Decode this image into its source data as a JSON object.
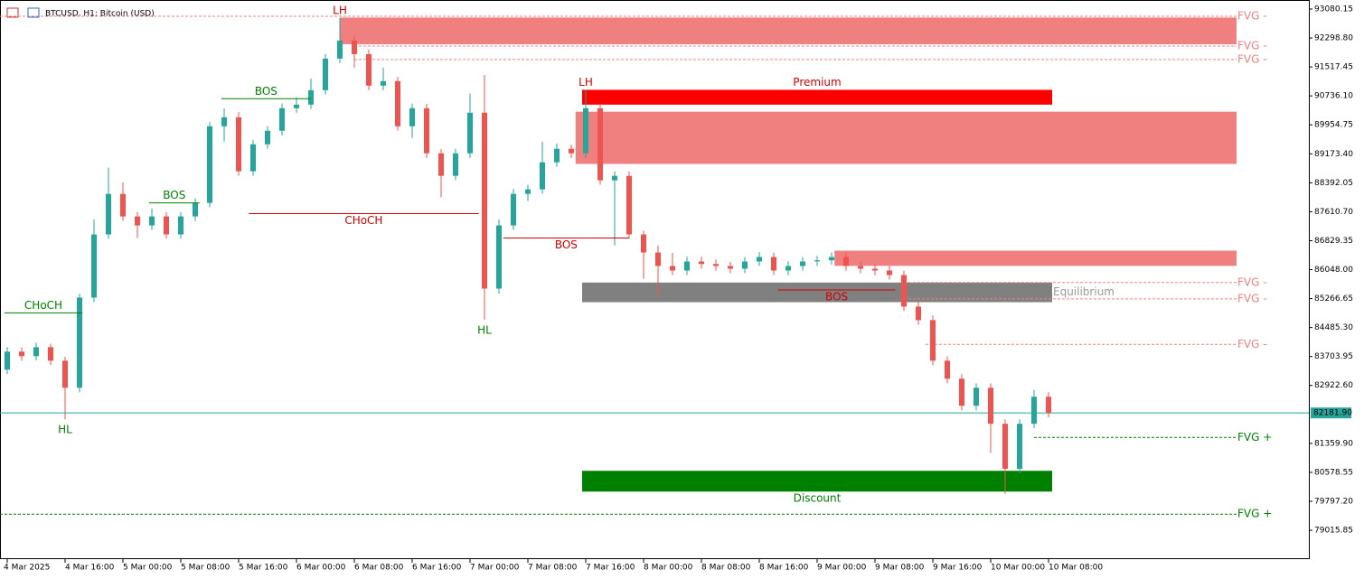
{
  "chart_data": {
    "type": "candlestick",
    "title": "BTCUSD, H1: Bitcoin (USD)",
    "categories": [
      "4 Mar 2025",
      null,
      null,
      null,
      "4 Mar 16:00",
      null,
      null,
      null,
      "5 Mar 00:00",
      null,
      null,
      null,
      "5 Mar 08:00",
      null,
      null,
      null,
      "5 Mar 16:00",
      null,
      null,
      null,
      "6 Mar 00:00",
      null,
      null,
      null,
      "6 Mar 08:00",
      null,
      null,
      null,
      "6 Mar 16:00",
      null,
      null,
      null,
      "7 Mar 00:00",
      null,
      null,
      null,
      "7 Mar 08:00",
      null,
      null,
      null,
      "7 Mar 16:00",
      null,
      null,
      null,
      "8 Mar 00:00",
      null,
      null,
      null,
      "8 Mar 08:00",
      null,
      null,
      null,
      "8 Mar 16:00",
      null,
      null,
      null,
      "9 Mar 00:00",
      null,
      null,
      null,
      "9 Mar 08:00",
      null,
      null,
      null,
      "9 Mar 16:00",
      null,
      null,
      null,
      "10 Mar 00:00",
      null,
      null,
      null,
      "10 Mar 08:00"
    ],
    "open": [
      83350,
      83835,
      83713,
      83956,
      83591,
      82861,
      85294,
      86998,
      88092,
      87484,
      87241,
      87484,
      86998,
      87484,
      87849,
      89917,
      90160,
      88701,
      89430,
      89795,
      90404,
      90500,
      90890,
      91742,
      92228,
      91863,
      91012,
      91134,
      89917,
      90404,
      89187,
      88579,
      89187,
      90282,
      85537,
      87241,
      88092,
      88214,
      88944,
      89309,
      89187,
      90404,
      88457,
      88579,
      86998,
      86511,
      86146,
      86024,
      86268,
      86200,
      86146,
      86073,
      86268,
      86389,
      86024,
      86146,
      86268,
      86300,
      86389,
      86146,
      86073,
      86024,
      85902,
      85051,
      84686,
      83591,
      83105,
      82375,
      82861,
      81889,
      80672,
      81889,
      82618
    ],
    "high": [
      83960,
      83950,
      84080,
      84050,
      83700,
      85400,
      87400,
      88800,
      88400,
      87600,
      87700,
      87600,
      87600,
      87970,
      90040,
      90400,
      90300,
      89550,
      89920,
      90530,
      90700,
      91200,
      91870,
      92840,
      92350,
      91990,
      91500,
      91250,
      90530,
      90520,
      89300,
      89310,
      90800,
      91300,
      87400,
      88220,
      88340,
      89500,
      89450,
      89420,
      90900,
      90530,
      88700,
      88700,
      87100,
      86700,
      86500,
      86400,
      86400,
      86320,
      86260,
      86390,
      86520,
      86510,
      86270,
      86390,
      86420,
      86510,
      86510,
      86270,
      86200,
      86150,
      86020,
      85170,
      84810,
      83710,
      83230,
      82980,
      82980,
      82010,
      82010,
      82800,
      82740
    ],
    "low": [
      83230,
      83590,
      83600,
      83470,
      82010,
      82740,
      85170,
      86880,
      87360,
      86900,
      87120,
      86880,
      86880,
      87360,
      87730,
      89500,
      88580,
      88580,
      89310,
      89670,
      90280,
      90380,
      90770,
      91620,
      91500,
      90890,
      90890,
      89800,
      89600,
      89060,
      88000,
      88460,
      89060,
      84700,
      85400,
      87120,
      87900,
      88100,
      88820,
      89060,
      89060,
      88340,
      86700,
      86880,
      85800,
      85300,
      85900,
      85900,
      86080,
      86020,
      85950,
      85950,
      86150,
      85900,
      85900,
      86020,
      86150,
      86180,
      86020,
      85950,
      85900,
      85780,
      84930,
      84560,
      83470,
      82980,
      82250,
      82250,
      81100,
      80000,
      80550,
      81770,
      82060
    ],
    "close": [
      83835,
      83713,
      83956,
      83591,
      82861,
      85294,
      86998,
      88092,
      87484,
      87241,
      87484,
      86998,
      87484,
      87849,
      89917,
      90160,
      88701,
      89430,
      89795,
      90404,
      90500,
      90890,
      91742,
      92228,
      91863,
      91012,
      91134,
      89917,
      90404,
      89187,
      88579,
      89187,
      90282,
      85537,
      87241,
      88092,
      88214,
      88944,
      89309,
      89187,
      90404,
      88457,
      88579,
      86998,
      86511,
      86146,
      86024,
      86268,
      86200,
      86146,
      86073,
      86268,
      86389,
      86024,
      86146,
      86268,
      86300,
      86389,
      86146,
      86073,
      86024,
      85902,
      85051,
      84686,
      83591,
      83105,
      82375,
      82861,
      81889,
      80672,
      81889,
      82618,
      82181.9
    ],
    "up_color": "#26a69a",
    "down_color": "#ef5350",
    "ylim": [
      78236.9,
      93323.5
    ],
    "yticks": [
      93080.15,
      {
        "value": 92298.8,
        "label": "92298.80"
      },
      91517.45,
      {
        "value": 90736.1,
        "label": "90736.10"
      },
      89954.75,
      {
        "value": 89173.4,
        "label": "89173.40"
      },
      88392.05,
      {
        "value": 87610.7,
        "label": "87610.70"
      },
      86829.35,
      {
        "value": 86048,
        "label": "86048.00"
      },
      85266.65,
      {
        "value": 84485.3,
        "label": "84485.30"
      },
      83703.95,
      {
        "value": 82922.6,
        "label": "82922.60"
      },
      {
        "value": 81359.9,
        "label": "81359.90"
      },
      80578.55,
      {
        "value": 79797.2,
        "label": "79797.20"
      },
      79015.85
    ],
    "last_price": {
      "value": 82181.9,
      "label": "82181.90"
    },
    "zones": [
      {
        "top": 92850,
        "bottom": 92130,
        "from": 23,
        "to": 85,
        "color": "#f08080"
      },
      {
        "top": 90310,
        "bottom": 88900,
        "from": 39.3,
        "to": 85,
        "color": "#f08080"
      },
      {
        "top": 86560,
        "bottom": 86150,
        "from": 57.2,
        "to": 85,
        "color": "#f08080"
      },
      {
        "top": 90900,
        "bottom": 90500,
        "from": 39.75,
        "to": 72.25,
        "color": "#ff0000",
        "label": "Premium",
        "label_pos": "above",
        "label_color": "#d00000"
      },
      {
        "top": 85700,
        "bottom": 85170,
        "from": 39.75,
        "to": 72.25,
        "color": "#808080",
        "label": "Equilibrium",
        "label_pos": "right",
        "label_color": "#999999"
      },
      {
        "top": 80620,
        "bottom": 80060,
        "from": 39.75,
        "to": 72.25,
        "color": "#008000",
        "label": "Discount",
        "label_pos": "below",
        "label_color": "#008000"
      }
    ],
    "structure": [
      {
        "label": "CHoCH",
        "level": 84880,
        "from": -0.2,
        "to": 5.2,
        "color": "#008000"
      },
      {
        "label": "BOS",
        "level": 87850,
        "from": 9.8,
        "to": 13.3,
        "color": "#008000"
      },
      {
        "label": "BOS",
        "level": 90660,
        "from": 14.8,
        "to": 21,
        "color": "#008000"
      },
      {
        "label": "CHoCH",
        "level": 87560,
        "from": 16.7,
        "to": 32.6,
        "color": "#d00000"
      },
      {
        "label": "BOS",
        "level": 86900,
        "from": 34.3,
        "to": 43,
        "color": "#d00000"
      },
      {
        "label": "BOS",
        "level": 85500,
        "from": 53.3,
        "to": 61.4,
        "color": "#d00000"
      }
    ],
    "points": [
      {
        "label": "LH",
        "index": 23,
        "side": "high",
        "color": "#d00000"
      },
      {
        "label": "LH",
        "index": 40,
        "side": "high",
        "color": "#d00000"
      },
      {
        "label": "HL",
        "index": 4,
        "side": "low",
        "color": "#008000"
      },
      {
        "label": "HL",
        "index": 33,
        "side": "low",
        "color": "#008000"
      }
    ],
    "fvg_levels": [
      {
        "label": "FVG -",
        "level": 92885,
        "from": -0.5,
        "color": "#f08080"
      },
      {
        "label": "FVG -",
        "level": 92080,
        "from": 24,
        "color": "#f08080"
      },
      {
        "label": "FVG -",
        "level": 91717,
        "from": 24,
        "color": "#f08080"
      },
      {
        "label": "FVG -",
        "level": 85700,
        "from": 62,
        "color": "#f08080"
      },
      {
        "label": "FVG -",
        "level": 85260,
        "from": 62,
        "color": "#f08080"
      },
      {
        "label": "FVG -",
        "level": 84030,
        "from": 63.5,
        "color": "#f08080"
      },
      {
        "label": "FVG +",
        "level": 81520,
        "from": 71,
        "color": "#008000"
      },
      {
        "label": "FVG +",
        "level": 79450,
        "from": -0.5,
        "color": "#008000"
      }
    ]
  }
}
